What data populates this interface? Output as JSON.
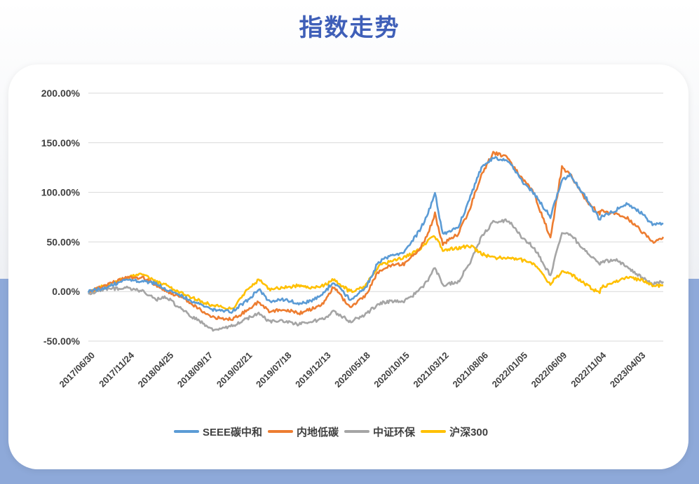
{
  "page": {
    "title": "指数走势"
  },
  "colors": {
    "SEEE碳中和": "#5b9bd5",
    "内地低碳": "#ed7d31",
    "中证环保": "#a5a5a5",
    "沪深300": "#ffc000"
  },
  "chart_data": {
    "type": "line",
    "ylim": [
      -50,
      200
    ],
    "y_ticks": [
      -50,
      0,
      50,
      100,
      150,
      200
    ],
    "y_tick_labels": [
      "-50.00%",
      "0.00%",
      "50.00%",
      "100.00%",
      "150.00%",
      "200.00%"
    ],
    "x_tick_labels": [
      "2017/06/30",
      "2017/11/24",
      "2018/04/25",
      "2018/09/17",
      "2019/02/21",
      "2019/07/18",
      "2019/12/13",
      "2020/05/18",
      "2020/10/15",
      "2021/03/12",
      "2021/08/06",
      "2022/01/05",
      "2022/06/09",
      "2022/11/04",
      "2023/04/03"
    ],
    "x_range": [
      "2017-06-30",
      "2023-06-30"
    ],
    "grid": true,
    "legend_position": "bottom",
    "series": [
      {
        "name": "SEEE碳中和",
        "color": "#5b9bd5",
        "points": [
          [
            "2017-06-30",
            0
          ],
          [
            "2017-09-01",
            4
          ],
          [
            "2017-11-24",
            12
          ],
          [
            "2018-01-26",
            10
          ],
          [
            "2018-03-15",
            8
          ],
          [
            "2018-04-25",
            2
          ],
          [
            "2018-06-20",
            -4
          ],
          [
            "2018-08-15",
            -12
          ],
          [
            "2018-10-18",
            -18
          ],
          [
            "2018-12-28",
            -20
          ],
          [
            "2019-02-21",
            -10
          ],
          [
            "2019-04-10",
            2
          ],
          [
            "2019-05-20",
            -10
          ],
          [
            "2019-07-18",
            -8
          ],
          [
            "2019-09-10",
            -12
          ],
          [
            "2019-10-25",
            -10
          ],
          [
            "2019-12-13",
            -2
          ],
          [
            "2020-01-20",
            10
          ],
          [
            "2020-03-23",
            -8
          ],
          [
            "2020-05-18",
            2
          ],
          [
            "2020-07-10",
            30
          ],
          [
            "2020-08-25",
            36
          ],
          [
            "2020-10-15",
            40
          ],
          [
            "2020-12-10",
            60
          ],
          [
            "2021-01-10",
            75
          ],
          [
            "2021-02-10",
            100
          ],
          [
            "2021-03-12",
            58
          ],
          [
            "2021-05-10",
            65
          ],
          [
            "2021-06-25",
            95
          ],
          [
            "2021-08-06",
            125
          ],
          [
            "2021-09-20",
            135
          ],
          [
            "2021-11-15",
            132
          ],
          [
            "2022-01-05",
            112
          ],
          [
            "2022-02-20",
            100
          ],
          [
            "2022-04-26",
            75
          ],
          [
            "2022-06-09",
            112
          ],
          [
            "2022-07-10",
            118
          ],
          [
            "2022-09-15",
            92
          ],
          [
            "2022-10-31",
            72
          ],
          [
            "2022-11-04",
            75
          ],
          [
            "2022-12-30",
            82
          ],
          [
            "2023-02-10",
            88
          ],
          [
            "2023-04-03",
            80
          ],
          [
            "2023-05-20",
            68
          ],
          [
            "2023-06-30",
            68
          ]
        ]
      },
      {
        "name": "内地低碳",
        "color": "#ed7d31",
        "points": [
          [
            "2017-06-30",
            0
          ],
          [
            "2017-09-01",
            6
          ],
          [
            "2017-11-24",
            14
          ],
          [
            "2018-01-26",
            14
          ],
          [
            "2018-03-15",
            6
          ],
          [
            "2018-04-25",
            0
          ],
          [
            "2018-06-20",
            -6
          ],
          [
            "2018-08-15",
            -16
          ],
          [
            "2018-10-18",
            -26
          ],
          [
            "2018-12-28",
            -28
          ],
          [
            "2019-02-21",
            -20
          ],
          [
            "2019-04-10",
            -10
          ],
          [
            "2019-05-20",
            -20
          ],
          [
            "2019-07-18",
            -18
          ],
          [
            "2019-09-10",
            -22
          ],
          [
            "2019-10-25",
            -18
          ],
          [
            "2019-12-13",
            -12
          ],
          [
            "2020-01-20",
            5
          ],
          [
            "2020-03-23",
            -16
          ],
          [
            "2020-05-18",
            -5
          ],
          [
            "2020-07-10",
            20
          ],
          [
            "2020-08-25",
            26
          ],
          [
            "2020-10-15",
            28
          ],
          [
            "2020-12-10",
            42
          ],
          [
            "2021-01-10",
            55
          ],
          [
            "2021-02-10",
            78
          ],
          [
            "2021-03-12",
            48
          ],
          [
            "2021-05-10",
            58
          ],
          [
            "2021-06-25",
            85
          ],
          [
            "2021-08-06",
            118
          ],
          [
            "2021-09-20",
            140
          ],
          [
            "2021-11-15",
            135
          ],
          [
            "2022-01-05",
            115
          ],
          [
            "2022-02-20",
            100
          ],
          [
            "2022-04-26",
            55
          ],
          [
            "2022-06-09",
            125
          ],
          [
            "2022-07-10",
            118
          ],
          [
            "2022-09-15",
            90
          ],
          [
            "2022-10-31",
            78
          ],
          [
            "2022-11-04",
            82
          ],
          [
            "2022-12-30",
            78
          ],
          [
            "2023-02-10",
            75
          ],
          [
            "2023-04-03",
            62
          ],
          [
            "2023-05-20",
            50
          ],
          [
            "2023-06-30",
            55
          ]
        ]
      },
      {
        "name": "中证环保",
        "color": "#a5a5a5",
        "points": [
          [
            "2017-06-30",
            -2
          ],
          [
            "2017-09-01",
            2
          ],
          [
            "2017-11-24",
            4
          ],
          [
            "2018-01-26",
            0
          ],
          [
            "2018-03-15",
            -8
          ],
          [
            "2018-04-25",
            -6
          ],
          [
            "2018-06-20",
            -18
          ],
          [
            "2018-08-15",
            -28
          ],
          [
            "2018-10-18",
            -38
          ],
          [
            "2018-12-28",
            -35
          ],
          [
            "2019-02-21",
            -28
          ],
          [
            "2019-04-10",
            -22
          ],
          [
            "2019-05-20",
            -30
          ],
          [
            "2019-07-18",
            -30
          ],
          [
            "2019-09-10",
            -33
          ],
          [
            "2019-10-25",
            -30
          ],
          [
            "2019-12-13",
            -28
          ],
          [
            "2020-01-20",
            -20
          ],
          [
            "2020-03-23",
            -30
          ],
          [
            "2020-05-18",
            -24
          ],
          [
            "2020-07-10",
            -12
          ],
          [
            "2020-08-25",
            -10
          ],
          [
            "2020-10-15",
            -10
          ],
          [
            "2020-12-10",
            0
          ],
          [
            "2021-01-10",
            10
          ],
          [
            "2021-02-10",
            24
          ],
          [
            "2021-03-12",
            6
          ],
          [
            "2021-05-10",
            10
          ],
          [
            "2021-06-25",
            30
          ],
          [
            "2021-08-06",
            55
          ],
          [
            "2021-09-20",
            70
          ],
          [
            "2021-11-15",
            72
          ],
          [
            "2022-01-05",
            55
          ],
          [
            "2022-02-20",
            45
          ],
          [
            "2022-04-26",
            16
          ],
          [
            "2022-06-09",
            60
          ],
          [
            "2022-07-10",
            58
          ],
          [
            "2022-09-15",
            38
          ],
          [
            "2022-10-31",
            28
          ],
          [
            "2022-11-04",
            30
          ],
          [
            "2022-12-30",
            32
          ],
          [
            "2023-02-10",
            25
          ],
          [
            "2023-04-03",
            15
          ],
          [
            "2023-05-20",
            8
          ],
          [
            "2023-06-30",
            10
          ]
        ]
      },
      {
        "name": "沪深300",
        "color": "#ffc000",
        "points": [
          [
            "2017-06-30",
            0
          ],
          [
            "2017-09-01",
            6
          ],
          [
            "2017-11-24",
            14
          ],
          [
            "2018-01-26",
            18
          ],
          [
            "2018-03-15",
            10
          ],
          [
            "2018-04-25",
            6
          ],
          [
            "2018-06-20",
            -2
          ],
          [
            "2018-08-15",
            -8
          ],
          [
            "2018-10-18",
            -14
          ],
          [
            "2018-12-28",
            -18
          ],
          [
            "2019-02-21",
            0
          ],
          [
            "2019-04-10",
            12
          ],
          [
            "2019-05-20",
            2
          ],
          [
            "2019-07-18",
            4
          ],
          [
            "2019-09-10",
            6
          ],
          [
            "2019-10-25",
            4
          ],
          [
            "2019-12-13",
            6
          ],
          [
            "2020-01-20",
            12
          ],
          [
            "2020-03-23",
            0
          ],
          [
            "2020-05-18",
            4
          ],
          [
            "2020-07-10",
            26
          ],
          [
            "2020-08-25",
            30
          ],
          [
            "2020-10-15",
            34
          ],
          [
            "2020-12-10",
            42
          ],
          [
            "2021-01-10",
            50
          ],
          [
            "2021-02-10",
            56
          ],
          [
            "2021-03-12",
            42
          ],
          [
            "2021-05-10",
            44
          ],
          [
            "2021-06-25",
            46
          ],
          [
            "2021-08-06",
            38
          ],
          [
            "2021-09-20",
            34
          ],
          [
            "2021-11-15",
            34
          ],
          [
            "2022-01-05",
            32
          ],
          [
            "2022-02-20",
            28
          ],
          [
            "2022-04-26",
            8
          ],
          [
            "2022-06-09",
            20
          ],
          [
            "2022-07-10",
            18
          ],
          [
            "2022-09-15",
            6
          ],
          [
            "2022-10-31",
            -2
          ],
          [
            "2022-11-04",
            4
          ],
          [
            "2022-12-30",
            10
          ],
          [
            "2023-02-10",
            14
          ],
          [
            "2023-04-03",
            12
          ],
          [
            "2023-05-20",
            6
          ],
          [
            "2023-06-30",
            6
          ]
        ]
      }
    ]
  }
}
